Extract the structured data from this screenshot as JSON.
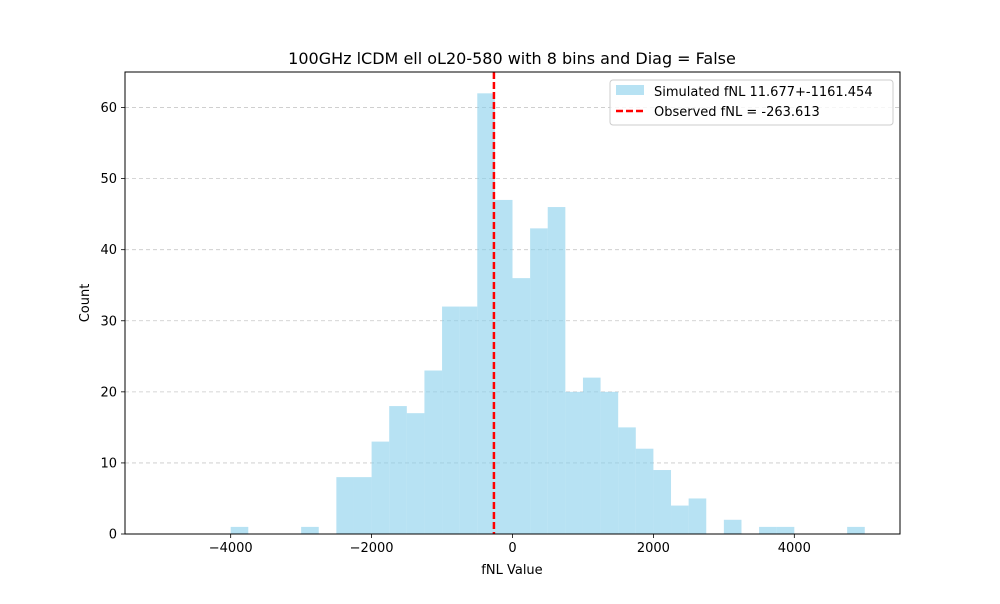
{
  "chart_data": {
    "type": "bar",
    "title": "100GHz lCDM ell oL20-580 with 8 bins and Diag = False",
    "xlabel": "fNL Value",
    "ylabel": "Count",
    "xlim": [
      -5500,
      5500
    ],
    "ylim": [
      0,
      65
    ],
    "xticks": [
      -4000,
      -2000,
      0,
      2000,
      4000
    ],
    "xtick_labels": [
      "−4000",
      "−2000",
      "0",
      "2000",
      "4000"
    ],
    "yticks": [
      0,
      10,
      20,
      30,
      40,
      50,
      60
    ],
    "ytick_labels": [
      "0",
      "10",
      "20",
      "30",
      "40",
      "50",
      "60"
    ],
    "grid": "y-dashed",
    "legend_position": "upper-right",
    "series": [
      {
        "name": "Simulated fNL 11.677+-1161.454",
        "kind": "histogram",
        "color": "#87ceeb",
        "opacity": 0.6,
        "bins": [
          {
            "x0": -4000,
            "x1": -3750,
            "count": 1
          },
          {
            "x0": -3000,
            "x1": -2750,
            "count": 1
          },
          {
            "x0": -2500,
            "x1": -2250,
            "count": 8
          },
          {
            "x0": -2250,
            "x1": -2000,
            "count": 8
          },
          {
            "x0": -2000,
            "x1": -1750,
            "count": 13
          },
          {
            "x0": -1750,
            "x1": -1500,
            "count": 18
          },
          {
            "x0": -1500,
            "x1": -1250,
            "count": 17
          },
          {
            "x0": -1250,
            "x1": -1000,
            "count": 23
          },
          {
            "x0": -1000,
            "x1": -750,
            "count": 32
          },
          {
            "x0": -750,
            "x1": -500,
            "count": 32
          },
          {
            "x0": -500,
            "x1": -250,
            "count": 62
          },
          {
            "x0": -250,
            "x1": 0,
            "count": 47
          },
          {
            "x0": 0,
            "x1": 250,
            "count": 36
          },
          {
            "x0": 250,
            "x1": 500,
            "count": 43
          },
          {
            "x0": 500,
            "x1": 750,
            "count": 46
          },
          {
            "x0": 750,
            "x1": 1000,
            "count": 20
          },
          {
            "x0": 1000,
            "x1": 1250,
            "count": 22
          },
          {
            "x0": 1250,
            "x1": 1500,
            "count": 20
          },
          {
            "x0": 1500,
            "x1": 1750,
            "count": 15
          },
          {
            "x0": 1750,
            "x1": 2000,
            "count": 12
          },
          {
            "x0": 2000,
            "x1": 2250,
            "count": 9
          },
          {
            "x0": 2250,
            "x1": 2500,
            "count": 4
          },
          {
            "x0": 2500,
            "x1": 2750,
            "count": 5
          },
          {
            "x0": 3000,
            "x1": 3250,
            "count": 2
          },
          {
            "x0": 3500,
            "x1": 3750,
            "count": 1
          },
          {
            "x0": 3750,
            "x1": 4000,
            "count": 1
          },
          {
            "x0": 4750,
            "x1": 5000,
            "count": 1
          }
        ]
      },
      {
        "name": "Observed fNL = -263.613",
        "kind": "vline",
        "color": "#ff0000",
        "x": -263.613
      }
    ]
  }
}
